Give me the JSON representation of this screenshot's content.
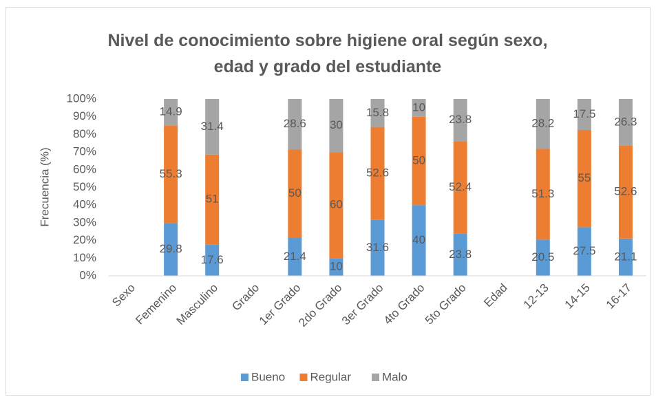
{
  "chart_data": {
    "type": "stacked_bar",
    "title": "Nivel de conocimiento sobre higiene oral según sexo, edad y grado del estudiante",
    "y_label": "Frecuencia (%)",
    "categories": [
      "Sexo",
      "Femenino",
      "Masculino",
      "Grado",
      "1er Grado",
      "2do Grado",
      "3er Grado",
      "4to Grado",
      "5to Grado",
      "Edad",
      "12-13",
      "14-15",
      "16-17"
    ],
    "series": [
      {
        "name": "Bueno",
        "color": "#5b9bd5",
        "values": [
          null,
          29.8,
          17.6,
          null,
          21.4,
          10,
          31.6,
          40,
          23.8,
          null,
          20.5,
          27.5,
          21.1
        ]
      },
      {
        "name": "Regular",
        "color": "#ed7d31",
        "values": [
          null,
          55.3,
          51,
          null,
          50,
          60,
          52.6,
          50,
          52.4,
          null,
          51.3,
          55,
          52.6
        ]
      },
      {
        "name": "Malo",
        "color": "#a5a5a5",
        "values": [
          null,
          14.9,
          31.4,
          null,
          28.6,
          30,
          15.8,
          10,
          23.8,
          null,
          28.2,
          17.5,
          26.3
        ]
      }
    ],
    "ylim": [
      0,
      100
    ],
    "yticks": [
      {
        "value": 0,
        "label": "0%"
      },
      {
        "value": 10,
        "label": "10%"
      },
      {
        "value": 20,
        "label": "20%"
      },
      {
        "value": 30,
        "label": "30%"
      },
      {
        "value": 40,
        "label": "40%"
      },
      {
        "value": 50,
        "label": "50%"
      },
      {
        "value": 60,
        "label": "60%"
      },
      {
        "value": 70,
        "label": "70%"
      },
      {
        "value": 80,
        "label": "80%"
      },
      {
        "value": 90,
        "label": "90%"
      },
      {
        "value": 100,
        "label": "100%"
      }
    ],
    "grid": false,
    "legend": "bottom"
  }
}
